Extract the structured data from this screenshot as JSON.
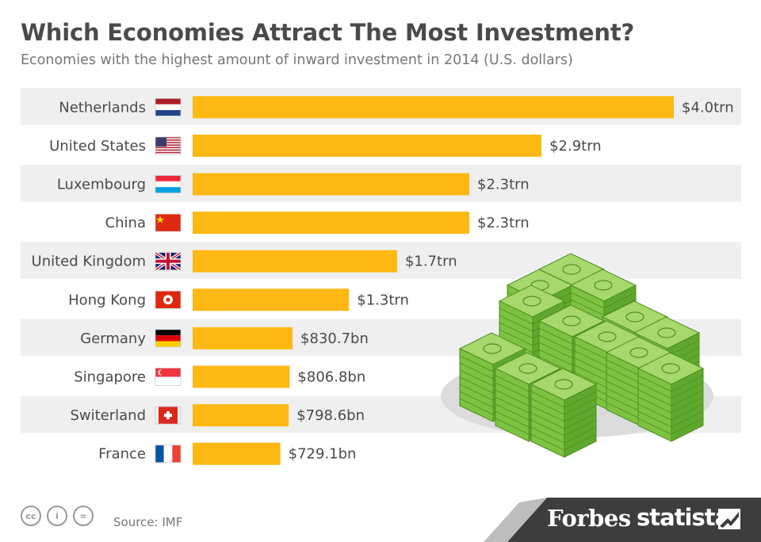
{
  "header": {
    "title": "Which Economies Attract The Most Investment?",
    "subtitle": "Economies with the highest amount of inward investment in 2014 (U.S. dollars)"
  },
  "chart_data": {
    "type": "bar",
    "orientation": "horizontal",
    "categories": [
      "Netherlands",
      "United States",
      "Luxembourg",
      "China",
      "United Kingdom",
      "Hong Kong",
      "Germany",
      "Singapore",
      "Switerland",
      "France"
    ],
    "values": [
      4000,
      2900,
      2300,
      2300,
      1700,
      1300,
      830.7,
      806.8,
      798.6,
      729.1
    ],
    "value_unit": "billion U.S. dollars",
    "labels": [
      "$4.0trn",
      "$2.9trn",
      "$2.3trn",
      "$2.3trn",
      "$1.7trn",
      "$1.3trn",
      "$830.7bn",
      "$806.8bn",
      "$798.6bn",
      "$729.1bn"
    ],
    "flags": [
      "netherlands-flag",
      "united-states-flag",
      "luxembourg-flag",
      "china-flag",
      "united-kingdom-flag",
      "hong-kong-flag",
      "germany-flag",
      "singapore-flag",
      "switzerland-flag",
      "france-flag"
    ],
    "xlim": [
      0,
      4000
    ],
    "bar_color": "#fdb813",
    "stripe_color": "#efefef",
    "grid": false,
    "legend": "none"
  },
  "illustration": {
    "name": "money-stacks-illustration",
    "color": "#7dc242"
  },
  "footer": {
    "license_icons": [
      "cc-icon",
      "by-icon",
      "nd-icon"
    ],
    "license_glyphs": [
      "cc",
      "i",
      "="
    ],
    "source": "Source: IMF",
    "forbes": "Forbes",
    "statista": "statista",
    "statista_logo_icon": "statista-logo-icon"
  }
}
